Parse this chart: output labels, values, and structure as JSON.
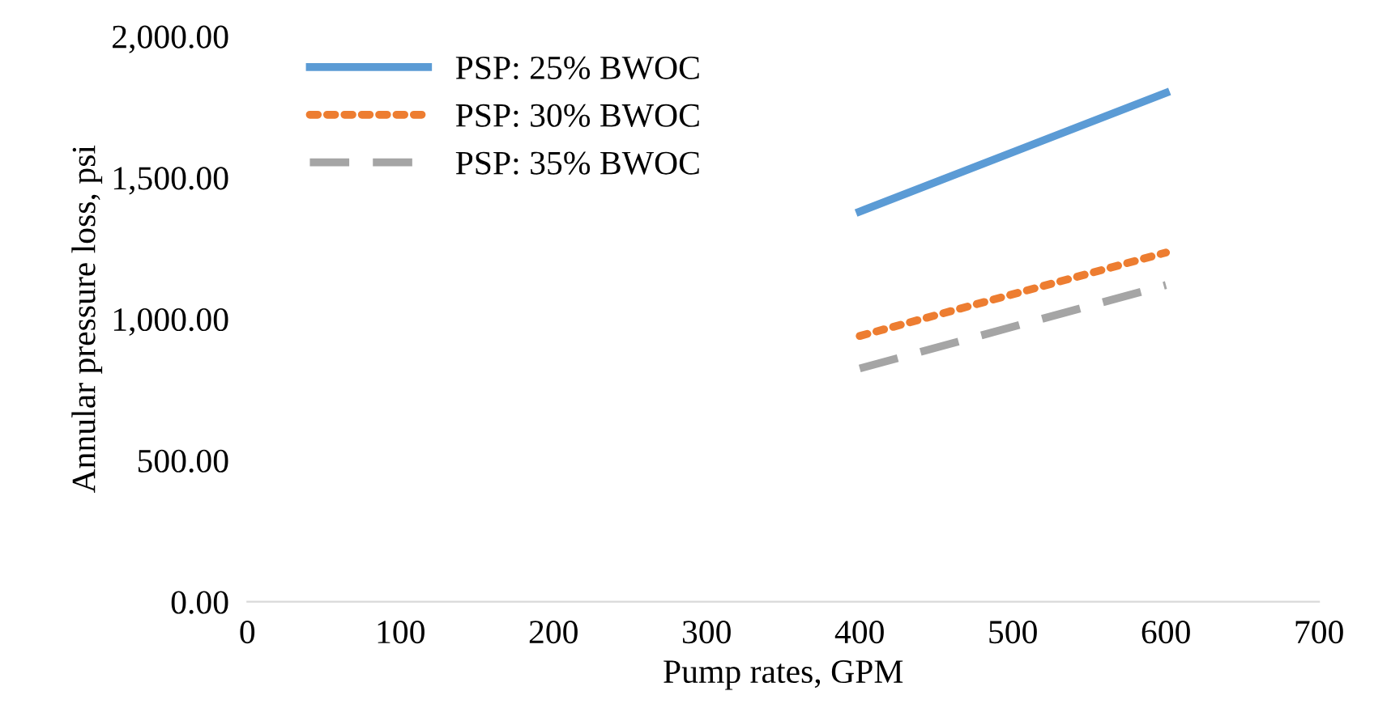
{
  "chart_data": {
    "type": "line",
    "xlabel": "Pump rates, GPM",
    "ylabel": "Annular pressure loss, psi",
    "x": [
      400,
      600
    ],
    "series": [
      {
        "name": "PSP: 25% BWOC",
        "color": "#5b9bd5",
        "line_style": "solid",
        "values": [
          1380,
          1800
        ]
      },
      {
        "name": "PSP: 30% BWOC",
        "color": "#ed7d31",
        "line_style": "dotted",
        "values": [
          940,
          1235
        ]
      },
      {
        "name": "PSP: 35% BWOC",
        "color": "#a5a5a5",
        "line_style": "dashed",
        "values": [
          825,
          1120
        ]
      }
    ],
    "xlim": [
      0,
      700
    ],
    "xticks": [
      0,
      100,
      200,
      300,
      400,
      500,
      600,
      700
    ],
    "ylim": [
      0,
      2000
    ],
    "yticks": [
      {
        "value": 0,
        "label": "0.00"
      },
      {
        "value": 500,
        "label": "500.00"
      },
      {
        "value": 1000,
        "label": "1,000.00"
      },
      {
        "value": 1500,
        "label": "1,500.00"
      },
      {
        "value": 2000,
        "label": "2,000.00"
      }
    ],
    "grid": false,
    "legend": "top left",
    "marker": "none"
  }
}
